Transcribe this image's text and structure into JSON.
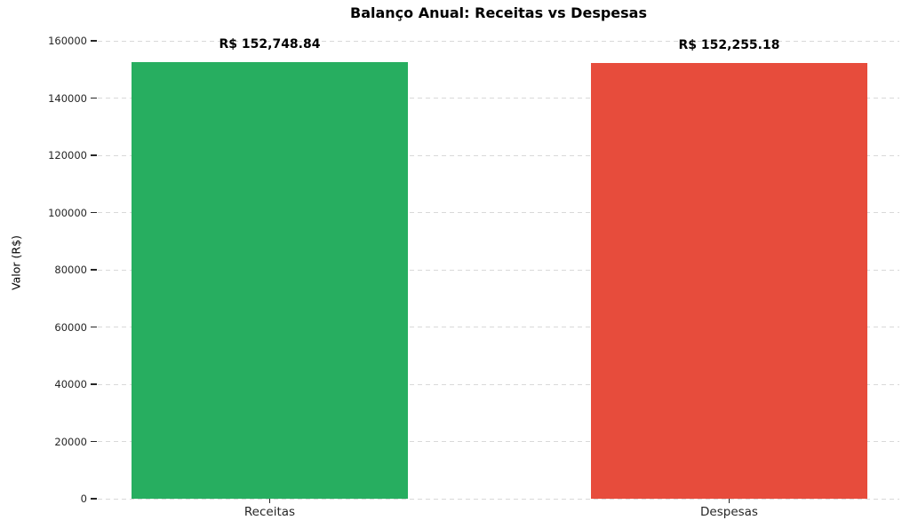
{
  "chart_data": {
    "type": "bar",
    "title": "Balanço Anual: Receitas vs Despesas",
    "xlabel": "",
    "ylabel": "Valor (R$)",
    "categories": [
      "Receitas",
      "Despesas"
    ],
    "values": [
      152748.84,
      152255.18
    ],
    "bar_labels": [
      "R$ 152,748.84",
      "R$ 152,255.18"
    ],
    "bar_colors": [
      "#27ae60",
      "#e74c3c"
    ],
    "bar_names": [
      "bar-receitas",
      "bar-despesas"
    ],
    "ylim": [
      0,
      165000
    ],
    "yticks": [
      0,
      20000,
      40000,
      60000,
      80000,
      100000,
      120000,
      140000,
      160000
    ],
    "ytick_labels": [
      "0",
      "20000",
      "40000",
      "60000",
      "80000",
      "100000",
      "120000",
      "140000",
      "160000"
    ],
    "grid": "horizontal dashed",
    "legend": "none"
  }
}
